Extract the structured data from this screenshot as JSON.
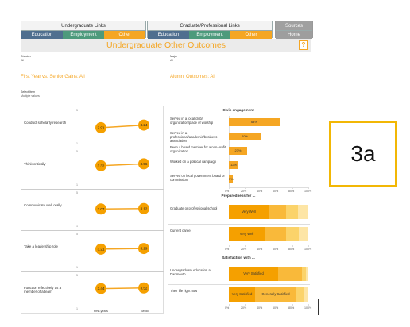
{
  "nav": {
    "undergrad_title": "Undergraduate Links",
    "grad_title": "Graduate/Professional Links",
    "undergrad_buttons": [
      "Education",
      "Employment",
      "Other"
    ],
    "grad_buttons": [
      "Education",
      "Employment",
      "Other"
    ],
    "sources": "Sources",
    "home": "Home"
  },
  "title": "Undergraduate Other Outcomes",
  "help_icon": "?",
  "filters": {
    "division_label": "Division",
    "division_value": "All",
    "major_label": "Major",
    "major_value": "All",
    "item_label": "Select Item",
    "item_value": "Multiple values"
  },
  "sections": {
    "left": "First Year vs. Senior Gains: All",
    "right": "Alumni Outcomes: All"
  },
  "gains": {
    "rows": [
      {
        "label": "Conduct scholarly research",
        "first": "2.91",
        "senior": "3.24"
      },
      {
        "label": "Think critically",
        "first": "3.32",
        "senior": "3.56"
      },
      {
        "label": "Communicate well orally",
        "first": "3.07",
        "senior": "3.12"
      },
      {
        "label": "Take a leadership role",
        "first": "3.21",
        "senior": "3.29"
      },
      {
        "label": "Function effectively as a member of a team",
        "first": "3.44",
        "senior": "3.52"
      }
    ],
    "ytick_top": "5",
    "ytick_bottom": "1",
    "x_labels": [
      "First-years",
      "Senior"
    ]
  },
  "civic": {
    "title": "Civic engagement",
    "bars": [
      {
        "label": "Served in a local club/ organization/place of worship",
        "value": 64,
        "text": "64%"
      },
      {
        "label": "Served in a professional/academic/business association",
        "value": 40,
        "text": "40%"
      },
      {
        "label": "Been a board member for a non-profit organization",
        "value": 23,
        "text": "23%"
      },
      {
        "label": "Worked on a political campaign",
        "value": 12,
        "text": "12%"
      },
      {
        "label": "Served on local government board or commission",
        "value": 5,
        "text": "5%"
      }
    ],
    "ticks": [
      "0%",
      "20%",
      "40%",
      "60%",
      "80%",
      "100%"
    ]
  },
  "preparedness": {
    "title": "Preparedness for ...",
    "rows": [
      {
        "label": "Graduate or professional school",
        "segs": [
          50,
          22,
          15,
          13
        ],
        "seg_text": [
          "Very Well",
          "",
          "",
          ""
        ]
      },
      {
        "label": "Current career",
        "segs": [
          45,
          27,
          16,
          12
        ],
        "seg_text": [
          "Very Well",
          "",
          "",
          ""
        ]
      }
    ],
    "ticks": [
      "0%",
      "20%",
      "40%",
      "60%",
      "80%",
      "100%"
    ]
  },
  "satisfaction": {
    "title": "Satisfaction with ...",
    "rows": [
      {
        "label": "Undergraduate education at Dartmouth",
        "segs": [
          62,
          30,
          5,
          3
        ],
        "seg_text": [
          "Very Satisfied",
          "",
          "",
          ""
        ]
      },
      {
        "label": "Their life right now",
        "segs": [
          33,
          52,
          10,
          5
        ],
        "seg_text": [
          "Very Satisfied",
          "Generally Satisfied",
          "",
          ""
        ]
      }
    ],
    "ticks": [
      "0%",
      "20%",
      "40%",
      "60%",
      "80%",
      "100%"
    ]
  },
  "badge": "3a",
  "colors": {
    "accent": "#f5a623",
    "education": "#4f6f8f",
    "employment": "#4d9a7c",
    "badge_border": "#f2b705"
  }
}
